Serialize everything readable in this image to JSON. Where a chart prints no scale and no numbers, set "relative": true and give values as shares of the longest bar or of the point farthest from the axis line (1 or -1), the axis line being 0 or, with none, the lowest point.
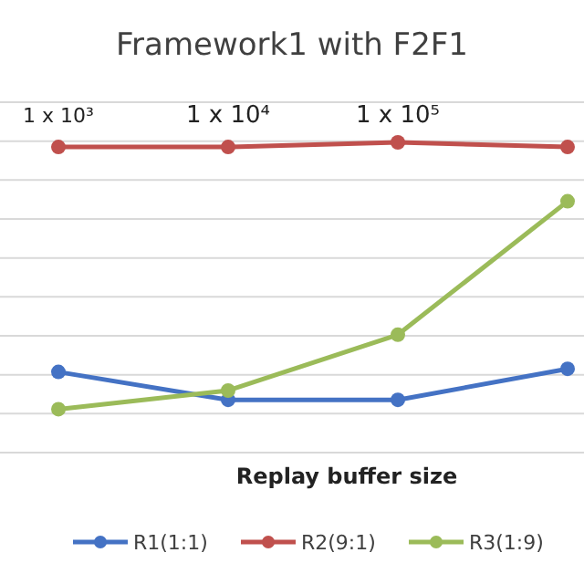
{
  "chart_data": {
    "type": "line",
    "title": "Framework1 with F2F1",
    "xlabel": "Replay buffer size",
    "relative": true,
    "categories": [
      "1 x 10³",
      "1 x 10⁴",
      "1 x 10⁵",
      null
    ],
    "series": [
      {
        "name": "R1(1:1)",
        "color": "#4472c4",
        "values": [
          0.26,
          0.17,
          0.17,
          0.27
        ]
      },
      {
        "name": "R2(9:1)",
        "color": "#c0504d",
        "values": [
          0.985,
          0.985,
          1,
          0.985
        ]
      },
      {
        "name": "R3(1:9)",
        "color": "#9bbb59",
        "values": [
          0.14,
          0.2,
          0.38,
          0.81
        ]
      }
    ],
    "grid": "y",
    "legend": "bottom",
    "marker": "circle",
    "line_style": "solid"
  }
}
